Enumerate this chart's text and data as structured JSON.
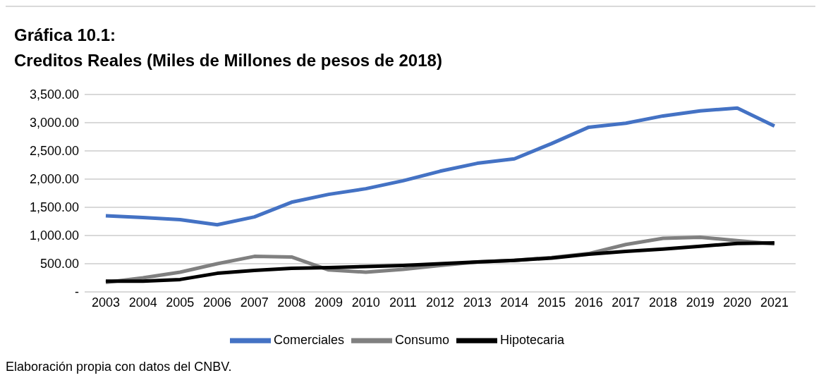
{
  "chart_data": {
    "type": "line",
    "title": "Gráfica 10.1:",
    "subtitle": "Creditos Reales (Miles de Millones de pesos de 2018)",
    "categories": [
      "2003",
      "2004",
      "2005",
      "2006",
      "2007",
      "2008",
      "2009",
      "2010",
      "2011",
      "2012",
      "2013",
      "2014",
      "2015",
      "2016",
      "2017",
      "2018",
      "2019",
      "2020",
      "2021"
    ],
    "series": [
      {
        "name": "Comerciales",
        "color": "#4472c4",
        "values": [
          1350,
          1320,
          1280,
          1190,
          1330,
          1590,
          1730,
          1830,
          1970,
          2140,
          2280,
          2360,
          2630,
          2920,
          2990,
          3120,
          3210,
          3260,
          2940
        ]
      },
      {
        "name": "Consumo",
        "color": "#808080",
        "values": [
          170,
          250,
          350,
          500,
          630,
          620,
          390,
          350,
          400,
          470,
          530,
          560,
          610,
          680,
          840,
          950,
          970,
          910,
          850
        ]
      },
      {
        "name": "Hipotecaria",
        "color": "#000000",
        "values": [
          190,
          190,
          220,
          330,
          380,
          420,
          430,
          450,
          470,
          500,
          530,
          560,
          600,
          670,
          720,
          760,
          810,
          860,
          870
        ]
      }
    ],
    "ylim": [
      0,
      3500
    ],
    "yticks": [
      {
        "value": 0,
        "label": "-"
      },
      {
        "value": 500,
        "label": "500.00"
      },
      {
        "value": 1000,
        "label": "1,000.00"
      },
      {
        "value": 1500,
        "label": "1,500.00"
      },
      {
        "value": 2000,
        "label": "2,000.00"
      },
      {
        "value": 2500,
        "label": "2,500.00"
      },
      {
        "value": 3000,
        "label": "3,000.00"
      },
      {
        "value": 3500,
        "label": "3,500.00"
      }
    ],
    "grid": "y",
    "legend": "bottom",
    "marker": "none",
    "line_style": "solid",
    "annotations": [
      "Elaboración propia con datos del CNBV."
    ]
  }
}
